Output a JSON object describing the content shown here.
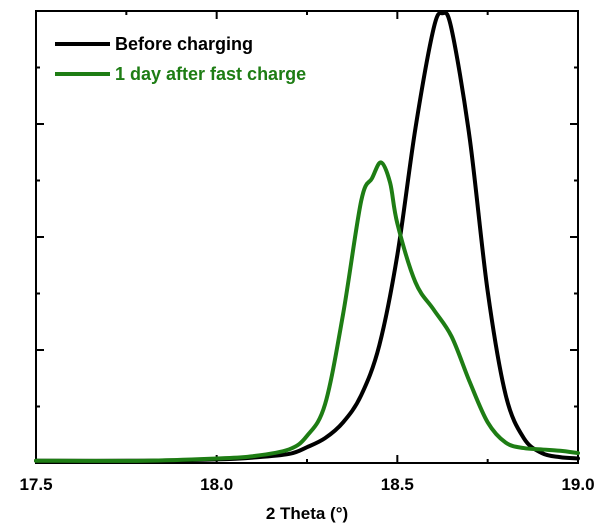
{
  "chart_data": {
    "type": "line",
    "title": "",
    "xlabel": "2 Theta (°)",
    "ylabel": "",
    "xlim": [
      17.5,
      19.0
    ],
    "ylim": [
      0,
      1.0
    ],
    "xticks": [
      17.5,
      18.0,
      18.5,
      19.0
    ],
    "xtick_labels": [
      "17.5",
      "18.0",
      "18.5",
      "19.0"
    ],
    "yticks_unlabeled": [
      0.25,
      0.5,
      0.75,
      1.0
    ],
    "grid": false,
    "legend_position": "top-left",
    "series": [
      {
        "name": "Before charging",
        "color": "#000000",
        "x": [
          17.5,
          17.8,
          18.0,
          18.1,
          18.2,
          18.25,
          18.3,
          18.35,
          18.4,
          18.45,
          18.5,
          18.55,
          18.6,
          18.625,
          18.65,
          18.7,
          18.75,
          18.8,
          18.85,
          18.9,
          18.95,
          19.0
        ],
        "y": [
          0.005,
          0.005,
          0.008,
          0.012,
          0.02,
          0.035,
          0.055,
          0.09,
          0.15,
          0.26,
          0.46,
          0.74,
          0.96,
          0.995,
          0.96,
          0.72,
          0.38,
          0.15,
          0.055,
          0.022,
          0.013,
          0.01
        ]
      },
      {
        "name": "1 day after fast charge",
        "color": "#1e7d14",
        "x": [
          17.5,
          17.8,
          18.0,
          18.1,
          18.2,
          18.25,
          18.3,
          18.35,
          18.4,
          18.43,
          18.455,
          18.48,
          18.5,
          18.55,
          18.6,
          18.65,
          18.7,
          18.75,
          18.8,
          18.85,
          18.9,
          18.95,
          19.0
        ],
        "y": [
          0.005,
          0.005,
          0.01,
          0.015,
          0.03,
          0.06,
          0.13,
          0.33,
          0.58,
          0.63,
          0.665,
          0.62,
          0.53,
          0.4,
          0.34,
          0.28,
          0.18,
          0.09,
          0.045,
          0.033,
          0.03,
          0.027,
          0.022
        ]
      }
    ]
  }
}
